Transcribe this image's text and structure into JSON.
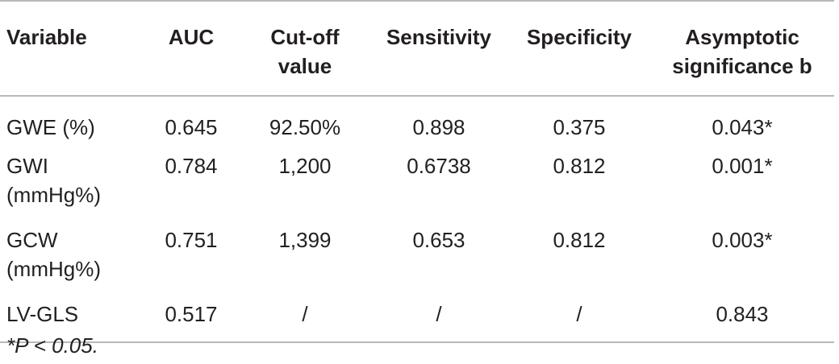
{
  "table": {
    "headers": {
      "variable": "Variable",
      "auc": "AUC",
      "cutoff": "Cut-off value",
      "sensitivity": "Sensitivity",
      "specificity": "Specificity",
      "asymptotic": "Asymptotic significance b"
    },
    "rows": [
      {
        "variable": "GWE (%)",
        "auc": "0.645",
        "cutoff": "92.50%",
        "sensitivity": "0.898",
        "specificity": "0.375",
        "asymptotic": "0.043*"
      },
      {
        "variable": "GWI (mmHg%)",
        "auc": "0.784",
        "cutoff": "1,200",
        "sensitivity": "0.6738",
        "specificity": "0.812",
        "asymptotic": "0.001*"
      },
      {
        "variable": "GCW (mmHg%)",
        "auc": "0.751",
        "cutoff": "1,399",
        "sensitivity": "0.653",
        "specificity": "0.812",
        "asymptotic": "0.003*"
      },
      {
        "variable": "LV-GLS",
        "auc": "0.517",
        "cutoff": "/",
        "sensitivity": "/",
        "specificity": "/",
        "asymptotic": "0.843"
      }
    ]
  },
  "footnote": "*P < 0.05."
}
